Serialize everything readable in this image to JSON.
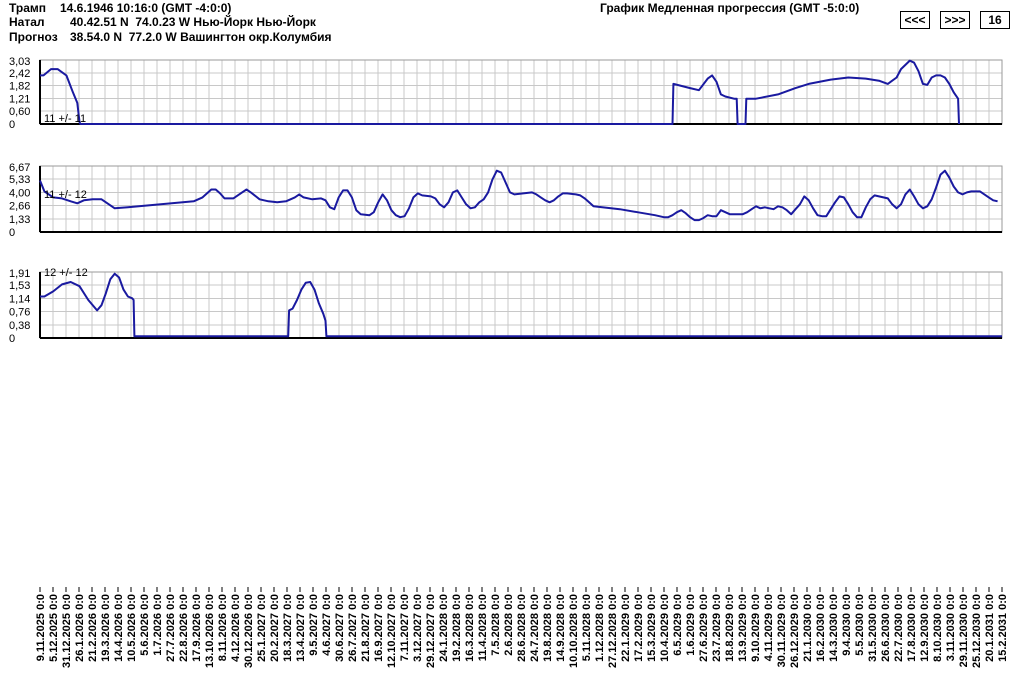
{
  "header": {
    "transit_label": "Трамп",
    "transit_value": "14.6.1946 10:16:0 (GMT -4:0:0)",
    "natal_label": "Натал",
    "natal_value": "40.42.51 N  74.0.23 W Нью-Йорк Нью-Йорк",
    "forecast_label": "Прогноз",
    "forecast_value": "38.54.0 N  77.2.0 W Вашингтон окр.Колумбия",
    "chart_title": "График Медленная прогрессия (GMT -5:0:0)"
  },
  "controls": {
    "prev_label": "<<<",
    "next_label": ">>>",
    "count_value": "16"
  },
  "colors": {
    "line": "#1a1aa0",
    "grid": "#c8c8c8",
    "axis": "#000000",
    "background": "#ffffff"
  },
  "chart_data": [
    {
      "type": "line",
      "annotation": "11 +/- 11",
      "yticks": [
        "3,03",
        "2,42",
        "1,82",
        "1,21",
        "0,60",
        "0"
      ],
      "ylim": [
        0,
        3.03
      ],
      "points": [
        [
          0,
          2.3
        ],
        [
          0.8,
          2.3
        ],
        [
          2.5,
          2.6
        ],
        [
          4,
          2.6
        ],
        [
          6,
          2.3
        ],
        [
          7.5,
          1.5
        ],
        [
          8.5,
          1.0
        ],
        [
          9,
          0.1
        ],
        [
          9.2,
          0
        ],
        [
          144,
          0
        ],
        [
          144.2,
          1.9
        ],
        [
          148,
          1.7
        ],
        [
          150,
          1.6
        ],
        [
          152,
          2.15
        ],
        [
          153,
          2.3
        ],
        [
          154,
          2.0
        ],
        [
          155,
          1.4
        ],
        [
          156,
          1.3
        ],
        [
          158,
          1.2
        ],
        [
          158.6,
          1.2
        ],
        [
          158.8,
          0
        ],
        [
          160.6,
          0
        ],
        [
          160.8,
          1.2
        ],
        [
          163,
          1.2
        ],
        [
          168,
          1.4
        ],
        [
          172,
          1.7
        ],
        [
          175,
          1.9
        ],
        [
          180,
          2.1
        ],
        [
          184,
          2.2
        ],
        [
          188,
          2.15
        ],
        [
          191,
          2.05
        ],
        [
          193,
          1.9
        ],
        [
          195,
          2.2
        ],
        [
          196,
          2.6
        ],
        [
          198,
          3.0
        ],
        [
          199,
          2.9
        ],
        [
          200,
          2.5
        ],
        [
          201,
          1.9
        ],
        [
          202,
          1.85
        ],
        [
          203,
          2.2
        ],
        [
          204,
          2.3
        ],
        [
          205,
          2.3
        ],
        [
          206,
          2.2
        ],
        [
          207,
          1.9
        ],
        [
          208,
          1.5
        ],
        [
          209,
          1.2
        ],
        [
          209.2,
          0
        ]
      ]
    },
    {
      "type": "line",
      "annotation": "11 +/- 12",
      "yticks": [
        "6,67",
        "5,33",
        "4,00",
        "2,66",
        "1,33",
        "0"
      ],
      "ylim": [
        0,
        6.67
      ],
      "points": [
        [
          0,
          5.2
        ],
        [
          1,
          4.1
        ],
        [
          3,
          3.5
        ],
        [
          5,
          3.4
        ],
        [
          7,
          3.1
        ],
        [
          8.5,
          2.9
        ],
        [
          10,
          3.2
        ],
        [
          12,
          3.3
        ],
        [
          14,
          3.3
        ],
        [
          15,
          3.0
        ],
        [
          17,
          2.4
        ],
        [
          20,
          2.5
        ],
        [
          25,
          2.7
        ],
        [
          30,
          2.9
        ],
        [
          35,
          3.1
        ],
        [
          37,
          3.5
        ],
        [
          39,
          4.3
        ],
        [
          40,
          4.3
        ],
        [
          41,
          3.9
        ],
        [
          42,
          3.4
        ],
        [
          44,
          3.4
        ],
        [
          46,
          4.0
        ],
        [
          47,
          4.3
        ],
        [
          48,
          4.0
        ],
        [
          50,
          3.3
        ],
        [
          52,
          3.1
        ],
        [
          54,
          3.0
        ],
        [
          56,
          3.1
        ],
        [
          58,
          3.5
        ],
        [
          59,
          3.8
        ],
        [
          60,
          3.5
        ],
        [
          62,
          3.3
        ],
        [
          64,
          3.4
        ],
        [
          65,
          3.2
        ],
        [
          66,
          2.5
        ],
        [
          67,
          2.3
        ],
        [
          68,
          3.5
        ],
        [
          69,
          4.2
        ],
        [
          70,
          4.2
        ],
        [
          71,
          3.5
        ],
        [
          72,
          2.2
        ],
        [
          73,
          1.8
        ],
        [
          75,
          1.7
        ],
        [
          76,
          2.0
        ],
        [
          77,
          3.0
        ],
        [
          78,
          3.8
        ],
        [
          79,
          3.2
        ],
        [
          80,
          2.2
        ],
        [
          81,
          1.7
        ],
        [
          82,
          1.5
        ],
        [
          83,
          1.6
        ],
        [
          84,
          2.4
        ],
        [
          85,
          3.5
        ],
        [
          86,
          3.9
        ],
        [
          87,
          3.7
        ],
        [
          89,
          3.6
        ],
        [
          90,
          3.4
        ],
        [
          91,
          2.8
        ],
        [
          92,
          2.5
        ],
        [
          93,
          3.0
        ],
        [
          94,
          4.0
        ],
        [
          95,
          4.2
        ],
        [
          96,
          3.5
        ],
        [
          97,
          2.8
        ],
        [
          98,
          2.4
        ],
        [
          99,
          2.5
        ],
        [
          100,
          3.0
        ],
        [
          101,
          3.3
        ],
        [
          102,
          4.0
        ],
        [
          103,
          5.3
        ],
        [
          104,
          6.2
        ],
        [
          105,
          6.0
        ],
        [
          106,
          5.0
        ],
        [
          107,
          4.0
        ],
        [
          108,
          3.8
        ],
        [
          110,
          3.9
        ],
        [
          112,
          4.0
        ],
        [
          113,
          3.8
        ],
        [
          114,
          3.5
        ],
        [
          115,
          3.2
        ],
        [
          116,
          3.0
        ],
        [
          117,
          3.2
        ],
        [
          118,
          3.6
        ],
        [
          119,
          3.9
        ],
        [
          120,
          3.9
        ],
        [
          122,
          3.8
        ],
        [
          123,
          3.7
        ],
        [
          124,
          3.4
        ],
        [
          125,
          3.0
        ],
        [
          126,
          2.6
        ],
        [
          128,
          2.5
        ],
        [
          132,
          2.3
        ],
        [
          136,
          2.0
        ],
        [
          140,
          1.7
        ],
        [
          142,
          1.5
        ],
        [
          143,
          1.5
        ],
        [
          144,
          1.7
        ],
        [
          145,
          2.0
        ],
        [
          146,
          2.2
        ],
        [
          147,
          1.9
        ],
        [
          148,
          1.5
        ],
        [
          149,
          1.2
        ],
        [
          150,
          1.2
        ],
        [
          151,
          1.4
        ],
        [
          152,
          1.7
        ],
        [
          153,
          1.6
        ],
        [
          154,
          1.6
        ],
        [
          155,
          2.2
        ],
        [
          156,
          2.0
        ],
        [
          157,
          1.8
        ],
        [
          158,
          1.8
        ],
        [
          159,
          1.8
        ],
        [
          160,
          1.8
        ],
        [
          161,
          2.0
        ],
        [
          162,
          2.3
        ],
        [
          163,
          2.6
        ],
        [
          164,
          2.4
        ],
        [
          165,
          2.5
        ],
        [
          166,
          2.4
        ],
        [
          167,
          2.3
        ],
        [
          168,
          2.6
        ],
        [
          169,
          2.5
        ],
        [
          170,
          2.2
        ],
        [
          171,
          1.8
        ],
        [
          172,
          2.3
        ],
        [
          173,
          2.8
        ],
        [
          174,
          3.6
        ],
        [
          175,
          3.2
        ],
        [
          176,
          2.4
        ],
        [
          177,
          1.7
        ],
        [
          178,
          1.6
        ],
        [
          179,
          1.6
        ],
        [
          180,
          2.3
        ],
        [
          181,
          3.0
        ],
        [
          182,
          3.6
        ],
        [
          183,
          3.5
        ],
        [
          184,
          2.8
        ],
        [
          185,
          2.0
        ],
        [
          186,
          1.5
        ],
        [
          187,
          1.5
        ],
        [
          188,
          2.5
        ],
        [
          189,
          3.3
        ],
        [
          190,
          3.7
        ],
        [
          191,
          3.6
        ],
        [
          192,
          3.5
        ],
        [
          193,
          3.4
        ],
        [
          194,
          2.8
        ],
        [
          195,
          2.4
        ],
        [
          196,
          2.8
        ],
        [
          197,
          3.8
        ],
        [
          198,
          4.3
        ],
        [
          199,
          3.6
        ],
        [
          200,
          2.8
        ],
        [
          201,
          2.4
        ],
        [
          202,
          2.6
        ],
        [
          203,
          3.3
        ],
        [
          204,
          4.5
        ],
        [
          205,
          5.8
        ],
        [
          206,
          6.2
        ],
        [
          207,
          5.5
        ],
        [
          208,
          4.6
        ],
        [
          209,
          4.0
        ],
        [
          210,
          3.8
        ],
        [
          211,
          4.0
        ],
        [
          212,
          4.1
        ],
        [
          213,
          4.1
        ],
        [
          214,
          4.1
        ],
        [
          215,
          3.8
        ],
        [
          216,
          3.5
        ],
        [
          217,
          3.2
        ],
        [
          218,
          3.1
        ]
      ]
    },
    {
      "type": "line",
      "annotation": "12 +/- 12",
      "yticks": [
        "1,91",
        "1,53",
        "1,14",
        "0,76",
        "0,38",
        "0"
      ],
      "ylim": [
        0,
        1.91
      ],
      "points": [
        [
          0,
          1.2
        ],
        [
          1,
          1.2
        ],
        [
          3,
          1.35
        ],
        [
          5,
          1.55
        ],
        [
          7,
          1.62
        ],
        [
          9,
          1.5
        ],
        [
          11,
          1.1
        ],
        [
          13,
          0.8
        ],
        [
          14,
          0.95
        ],
        [
          15,
          1.3
        ],
        [
          16,
          1.7
        ],
        [
          17,
          1.86
        ],
        [
          18,
          1.75
        ],
        [
          19,
          1.4
        ],
        [
          20,
          1.2
        ],
        [
          21,
          1.15
        ],
        [
          21.3,
          1.1
        ],
        [
          21.5,
          0.05
        ],
        [
          56.5,
          0.05
        ],
        [
          56.7,
          0.8
        ],
        [
          57.5,
          0.85
        ],
        [
          58.5,
          1.1
        ],
        [
          59.5,
          1.4
        ],
        [
          60.5,
          1.6
        ],
        [
          61.5,
          1.62
        ],
        [
          62.5,
          1.4
        ],
        [
          63.5,
          1.0
        ],
        [
          64.5,
          0.7
        ],
        [
          65,
          0.5
        ],
        [
          65.2,
          0.05
        ],
        [
          219,
          0.05
        ]
      ]
    }
  ],
  "x_dates": [
    "9.11.2025 0:0",
    "5.12.2025 0:0",
    "31.12.2025 0:0",
    "26.1.2026 0:0",
    "21.2.2026 0:0",
    "19.3.2026 0:0",
    "14.4.2026 0:0",
    "10.5.2026 0:0",
    "5.6.2026 0:0",
    "1.7.2026 0:0",
    "27.7.2026 0:0",
    "22.8.2026 0:0",
    "17.9.2026 0:0",
    "13.10.2026 0:0",
    "8.11.2026 0:0",
    "4.12.2026 0:0",
    "30.12.2026 0:0",
    "25.1.2027 0:0",
    "20.2.2027 0:0",
    "18.3.2027 0:0",
    "13.4.2027 0:0",
    "9.5.2027 0:0",
    "4.6.2027 0:0",
    "30.6.2027 0:0",
    "26.7.2027 0:0",
    "21.8.2027 0:0",
    "16.9.2027 0:0",
    "12.10.2027 0:0",
    "7.11.2027 0:0",
    "3.12.2027 0:0",
    "29.12.2027 0:0",
    "24.1.2028 0:0",
    "19.2.2028 0:0",
    "16.3.2028 0:0",
    "11.4.2028 0:0",
    "7.5.2028 0:0",
    "2.6.2028 0:0",
    "28.6.2028 0:0",
    "24.7.2028 0:0",
    "19.8.2028 0:0",
    "14.9.2028 0:0",
    "10.10.2028 0:0",
    "5.11.2028 0:0",
    "1.12.2028 0:0",
    "27.12.2028 0:0",
    "22.1.2029 0:0",
    "17.2.2029 0:0",
    "15.3.2029 0:0",
    "10.4.2029 0:0",
    "6.5.2029 0:0",
    "1.6.2029 0:0",
    "27.6.2029 0:0",
    "23.7.2029 0:0",
    "18.8.2029 0:0",
    "13.9.2029 0:0",
    "9.10.2029 0:0",
    "4.11.2029 0:0",
    "30.11.2029 0:0",
    "26.12.2029 0:0",
    "21.1.2030 0:0",
    "16.2.2030 0:0",
    "14.3.2030 0:0",
    "9.4.2030 0:0",
    "5.5.2030 0:0",
    "31.5.2030 0:0",
    "26.6.2030 0:0",
    "22.7.2030 0:0",
    "17.8.2030 0:0",
    "12.9.2030 0:0",
    "8.10.2030 0:0",
    "3.11.2030 0:0",
    "29.11.2030 0:0",
    "25.12.2030 0:0",
    "20.1.2031 0:0",
    "15.2.2031 0:0"
  ]
}
